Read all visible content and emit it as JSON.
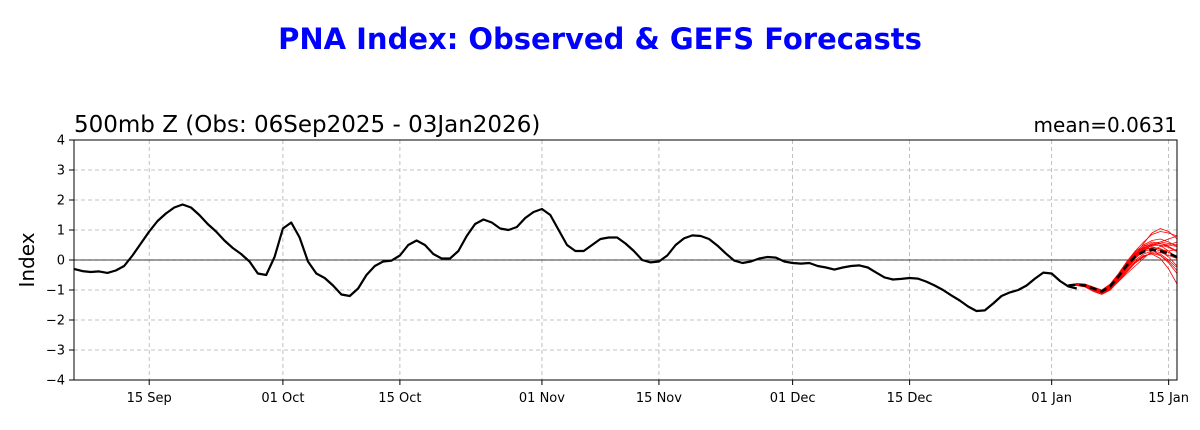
{
  "chart_data": {
    "type": "line",
    "title": "PNA Index: Observed & GEFS Forecasts",
    "subtitle": "500mb Z (Obs: 06Sep2025 - 03Jan2026)",
    "mean_label": "mean=0.0631",
    "ylabel": "Index",
    "xlabel": "",
    "ylim": [
      -4,
      4
    ],
    "yticks": [
      -4,
      -3,
      -2,
      -1,
      0,
      1,
      2,
      3,
      4
    ],
    "xlim": [
      "2025-09-06",
      "2026-01-16"
    ],
    "xticks": [
      {
        "date": "2025-09-15",
        "label": "15 Sep"
      },
      {
        "date": "2025-10-01",
        "label": "01 Oct"
      },
      {
        "date": "2025-10-15",
        "label": "15 Oct"
      },
      {
        "date": "2025-11-01",
        "label": "01 Nov"
      },
      {
        "date": "2025-11-15",
        "label": "15 Nov"
      },
      {
        "date": "2025-12-01",
        "label": "01 Dec"
      },
      {
        "date": "2025-12-15",
        "label": "15 Dec"
      },
      {
        "date": "2026-01-01",
        "label": "01 Jan"
      },
      {
        "date": "2026-01-15",
        "label": "15 Jan"
      }
    ],
    "grid": true,
    "colors": {
      "title": "#0000ff",
      "observed": "#000000",
      "members": "#ff0000",
      "ensemble_mean": "#000000",
      "grid": "#b0b0b0"
    },
    "observed": {
      "start": "2025-09-06",
      "values": [
        -0.3,
        -0.37,
        -0.4,
        -0.38,
        -0.43,
        -0.35,
        -0.2,
        0.15,
        0.55,
        0.95,
        1.3,
        1.55,
        1.75,
        1.85,
        1.75,
        1.5,
        1.2,
        0.95,
        0.65,
        0.4,
        0.2,
        -0.05,
        -0.45,
        -0.5,
        0.1,
        1.05,
        1.25,
        0.75,
        -0.05,
        -0.45,
        -0.6,
        -0.85,
        -1.15,
        -1.2,
        -0.95,
        -0.5,
        -0.2,
        -0.05,
        -0.02,
        0.15,
        0.5,
        0.65,
        0.5,
        0.2,
        0.05,
        0.05,
        0.3,
        0.8,
        1.2,
        1.35,
        1.25,
        1.05,
        1.0,
        1.1,
        1.4,
        1.6,
        1.7,
        1.5,
        1.0,
        0.5,
        0.3,
        0.3,
        0.5,
        0.7,
        0.75,
        0.75,
        0.55,
        0.3,
        0.0,
        -0.08,
        -0.05,
        0.15,
        0.5,
        0.72,
        0.82,
        0.8,
        0.7,
        0.48,
        0.22,
        -0.02,
        -0.1,
        -0.05,
        0.05,
        0.1,
        0.08,
        -0.05,
        -0.1,
        -0.12,
        -0.1,
        -0.2,
        -0.25,
        -0.32,
        -0.25,
        -0.2,
        -0.18,
        -0.25,
        -0.42,
        -0.58,
        -0.65,
        -0.63,
        -0.6,
        -0.62,
        -0.72,
        -0.85,
        -1.0,
        -1.18,
        -1.35,
        -1.55,
        -1.7,
        -1.68,
        -1.45,
        -1.2,
        -1.08,
        -1.0,
        -0.85,
        -0.62,
        -0.42,
        -0.45,
        -0.7,
        -0.88,
        -0.95
      ]
    },
    "forecast": {
      "start": "2026-01-03",
      "ensemble_mean": [
        -0.85,
        -0.82,
        -0.85,
        -0.95,
        -1.05,
        -0.88,
        -0.55,
        -0.18,
        0.12,
        0.28,
        0.35,
        0.3,
        0.22,
        0.1,
        0.0
      ],
      "members": [
        [
          -0.85,
          -0.8,
          -0.85,
          -0.95,
          -1.05,
          -0.9,
          -0.55,
          -0.15,
          0.2,
          0.45,
          0.6,
          0.55,
          0.45,
          0.3,
          0.2
        ],
        [
          -0.85,
          -0.82,
          -0.88,
          -1.0,
          -1.1,
          -0.95,
          -0.65,
          -0.3,
          0.05,
          0.3,
          0.5,
          0.6,
          0.55,
          0.5,
          0.4
        ],
        [
          -0.85,
          -0.78,
          -0.8,
          -0.9,
          -1.0,
          -0.8,
          -0.45,
          -0.05,
          0.3,
          0.6,
          0.85,
          0.95,
          0.9,
          0.8,
          0.65
        ],
        [
          -0.85,
          -0.85,
          -0.9,
          -1.05,
          -1.15,
          -1.0,
          -0.7,
          -0.4,
          -0.1,
          0.1,
          0.25,
          0.2,
          0.0,
          -0.25,
          -0.55
        ],
        [
          -0.85,
          -0.8,
          -0.82,
          -0.92,
          -1.0,
          -0.85,
          -0.5,
          -0.1,
          0.25,
          0.5,
          0.65,
          0.7,
          0.6,
          0.45,
          0.3
        ],
        [
          -0.85,
          -0.83,
          -0.86,
          -0.98,
          -1.08,
          -0.92,
          -0.6,
          -0.25,
          0.1,
          0.35,
          0.4,
          0.3,
          0.1,
          -0.2,
          -0.45
        ],
        [
          -0.85,
          -0.79,
          -0.84,
          -0.94,
          -1.02,
          -0.86,
          -0.52,
          -0.15,
          0.18,
          0.4,
          0.55,
          0.6,
          0.7,
          0.8,
          0.85
        ],
        [
          -0.85,
          -0.84,
          -0.87,
          -0.97,
          -1.06,
          -0.9,
          -0.62,
          -0.3,
          0.0,
          0.2,
          0.3,
          0.25,
          0.15,
          0.05,
          -0.1
        ],
        [
          -0.85,
          -0.81,
          -0.85,
          -0.96,
          -1.05,
          -0.88,
          -0.55,
          -0.2,
          0.15,
          0.55,
          0.9,
          1.05,
          0.95,
          0.7,
          0.45
        ],
        [
          -0.85,
          -0.82,
          -0.86,
          -0.99,
          -1.1,
          -0.97,
          -0.68,
          -0.35,
          -0.05,
          0.15,
          0.2,
          0.05,
          -0.3,
          -0.8,
          -1.2
        ],
        [
          -0.85,
          -0.8,
          -0.83,
          -0.93,
          -1.01,
          -0.84,
          -0.48,
          -0.08,
          0.28,
          0.5,
          0.45,
          0.35,
          0.3,
          0.35,
          0.45
        ],
        [
          -0.85,
          -0.83,
          -0.88,
          -1.0,
          -1.12,
          -0.98,
          -0.72,
          -0.45,
          -0.2,
          0.05,
          0.3,
          0.45,
          0.5,
          0.45,
          0.35
        ],
        [
          -0.85,
          -0.81,
          -0.84,
          -0.95,
          -1.04,
          -0.87,
          -0.5,
          -0.12,
          0.22,
          0.42,
          0.5,
          0.55,
          0.5,
          0.6,
          0.75
        ],
        [
          -0.85,
          -0.82,
          -0.87,
          -0.98,
          -1.08,
          -0.94,
          -0.62,
          -0.28,
          0.08,
          0.3,
          0.35,
          0.15,
          -0.1,
          -0.45,
          -0.75
        ],
        [
          -0.85,
          -0.8,
          -0.84,
          -0.94,
          -1.03,
          -0.86,
          -0.54,
          -0.18,
          0.16,
          0.38,
          0.52,
          0.48,
          0.3,
          0.05,
          -0.15
        ],
        [
          -0.85,
          -0.83,
          -0.86,
          -0.97,
          -1.07,
          -0.91,
          -0.58,
          -0.22,
          0.12,
          0.32,
          0.42,
          0.38,
          0.25,
          0.12,
          0.05
        ],
        [
          -0.85,
          -0.81,
          -0.85,
          -0.96,
          -1.05,
          -0.89,
          -0.56,
          -0.2,
          0.14,
          0.36,
          0.48,
          0.5,
          0.42,
          0.28,
          0.12
        ],
        [
          -0.85,
          -0.84,
          -0.89,
          -1.02,
          -1.14,
          -1.0,
          -0.7,
          -0.38,
          -0.08,
          0.12,
          0.22,
          0.15,
          -0.05,
          -0.35,
          -0.6
        ]
      ]
    }
  }
}
